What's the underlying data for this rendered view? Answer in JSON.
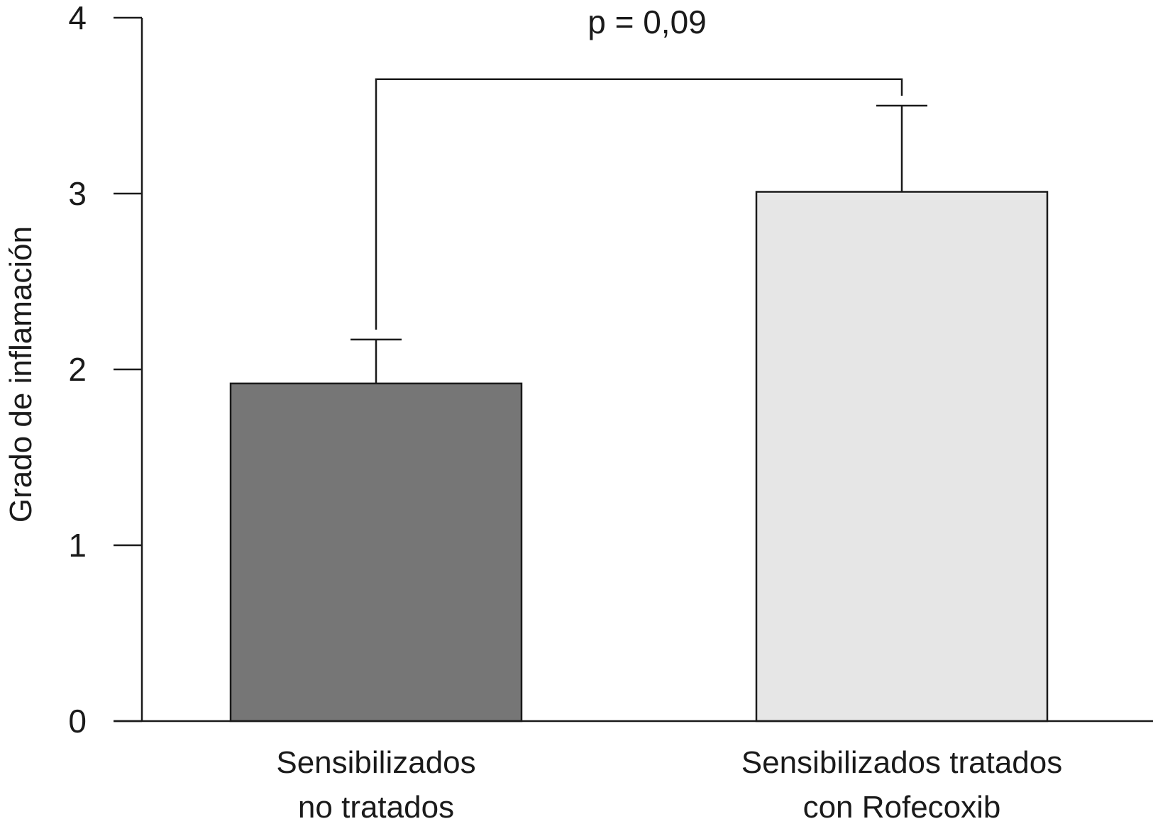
{
  "chart_data": {
    "type": "bar",
    "categories": [
      [
        "Sensibilizados",
        "no tratados"
      ],
      [
        "Sensibilizados tratados",
        "con Rofecoxib"
      ]
    ],
    "values": [
      1.92,
      3.01
    ],
    "errors": [
      0.25,
      0.49
    ],
    "bar_colors": [
      "#767676",
      "#e6e6e6"
    ],
    "bar_stroke": "#1a1a1a",
    "title": "",
    "xlabel": "",
    "ylabel": "Grado de inflamación",
    "ylim": [
      0,
      4
    ],
    "yticks": [
      "0",
      "1",
      "2",
      "3",
      "4"
    ],
    "grid": false,
    "legend": "none",
    "annotation": {
      "text": "p = 0,09",
      "between": [
        0,
        1
      ],
      "bracket_y": 3.65
    }
  }
}
